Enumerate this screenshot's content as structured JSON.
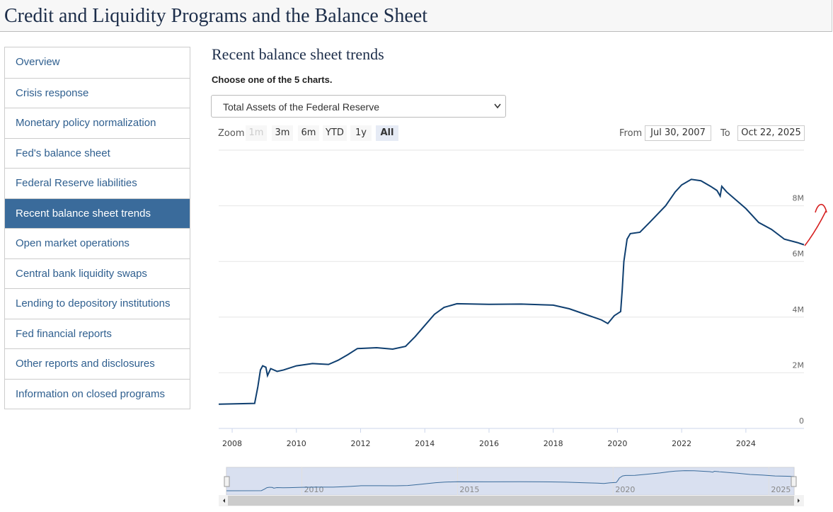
{
  "header": {
    "title": "Credit and Liquidity Programs and the Balance Sheet"
  },
  "nav": {
    "items": [
      "Overview",
      "Crisis response",
      "Monetary policy normalization",
      "Fed's balance sheet",
      "Federal Reserve liabilities",
      "Recent balance sheet trends",
      "Open market operations",
      "Central bank liquidity swaps",
      "Lending to depository institutions",
      "Fed financial reports",
      "Other reports and disclosures",
      "Information on closed programs"
    ],
    "active": 5
  },
  "section": {
    "title": "Recent balance sheet trends",
    "prompt": "Choose one of the 5 charts.",
    "select": "Total Assets of the Federal Reserve"
  },
  "zoom": {
    "label": "Zoom",
    "buttons": [
      "1m",
      "3m",
      "6m",
      "YTD",
      "1y",
      "All"
    ],
    "disabled": [
      0
    ],
    "selected": 5
  },
  "range": {
    "from_label": "From",
    "from": "Jul 30, 2007",
    "to_label": "To",
    "to": "Oct 22, 2025"
  },
  "chart_data": {
    "type": "line",
    "color": "#0f3f70",
    "x": [
      2007.58,
      2008.7,
      2008.8,
      2008.88,
      2008.95,
      2009.05,
      2009.1,
      2009.2,
      2009.4,
      2009.6,
      2010.0,
      2010.5,
      2011.0,
      2011.3,
      2011.6,
      2011.9,
      2012.5,
      2013.0,
      2013.4,
      2013.7,
      2014.0,
      2014.3,
      2014.6,
      2015.0,
      2016.0,
      2017.0,
      2018.0,
      2018.5,
      2019.0,
      2019.5,
      2019.7,
      2019.9,
      2020.1,
      2020.15,
      2020.2,
      2020.3,
      2020.4,
      2020.7,
      2021.0,
      2021.5,
      2021.8,
      2022.0,
      2022.3,
      2022.6,
      2022.9,
      2023.1,
      2023.2,
      2023.25,
      2023.4,
      2023.8,
      2024.0,
      2024.4,
      2024.8,
      2025.2,
      2025.6,
      2025.81
    ],
    "values": [
      870000,
      900000,
      1500000,
      2100000,
      2250000,
      2200000,
      1900000,
      2150000,
      2050000,
      2100000,
      2250000,
      2330000,
      2300000,
      2450000,
      2650000,
      2870000,
      2900000,
      2850000,
      2950000,
      3300000,
      3700000,
      4100000,
      4350000,
      4480000,
      4460000,
      4470000,
      4430000,
      4300000,
      4100000,
      3900000,
      3770000,
      4050000,
      4200000,
      5000000,
      6000000,
      6800000,
      7000000,
      7050000,
      7400000,
      8000000,
      8500000,
      8750000,
      8950000,
      8900000,
      8700000,
      8550000,
      8350000,
      8700000,
      8500000,
      8100000,
      7900000,
      7400000,
      7150000,
      6800000,
      6680000,
      6600000
    ],
    "xlim": [
      2007.58,
      2025.81
    ],
    "xticks": [
      2008,
      2010,
      2012,
      2014,
      2016,
      2018,
      2020,
      2022,
      2024
    ],
    "ylim": [
      0,
      10000000
    ],
    "yticks": [
      0,
      {
        "value": 2000000,
        "label": "2M"
      },
      {
        "value": 4000000,
        "label": "4M"
      },
      {
        "value": 6000000,
        "label": "6M"
      },
      {
        "value": 8000000,
        "label": "8M"
      }
    ],
    "grid": true,
    "navigator_xticks": [
      2010,
      2015,
      2020,
      2025
    ]
  }
}
